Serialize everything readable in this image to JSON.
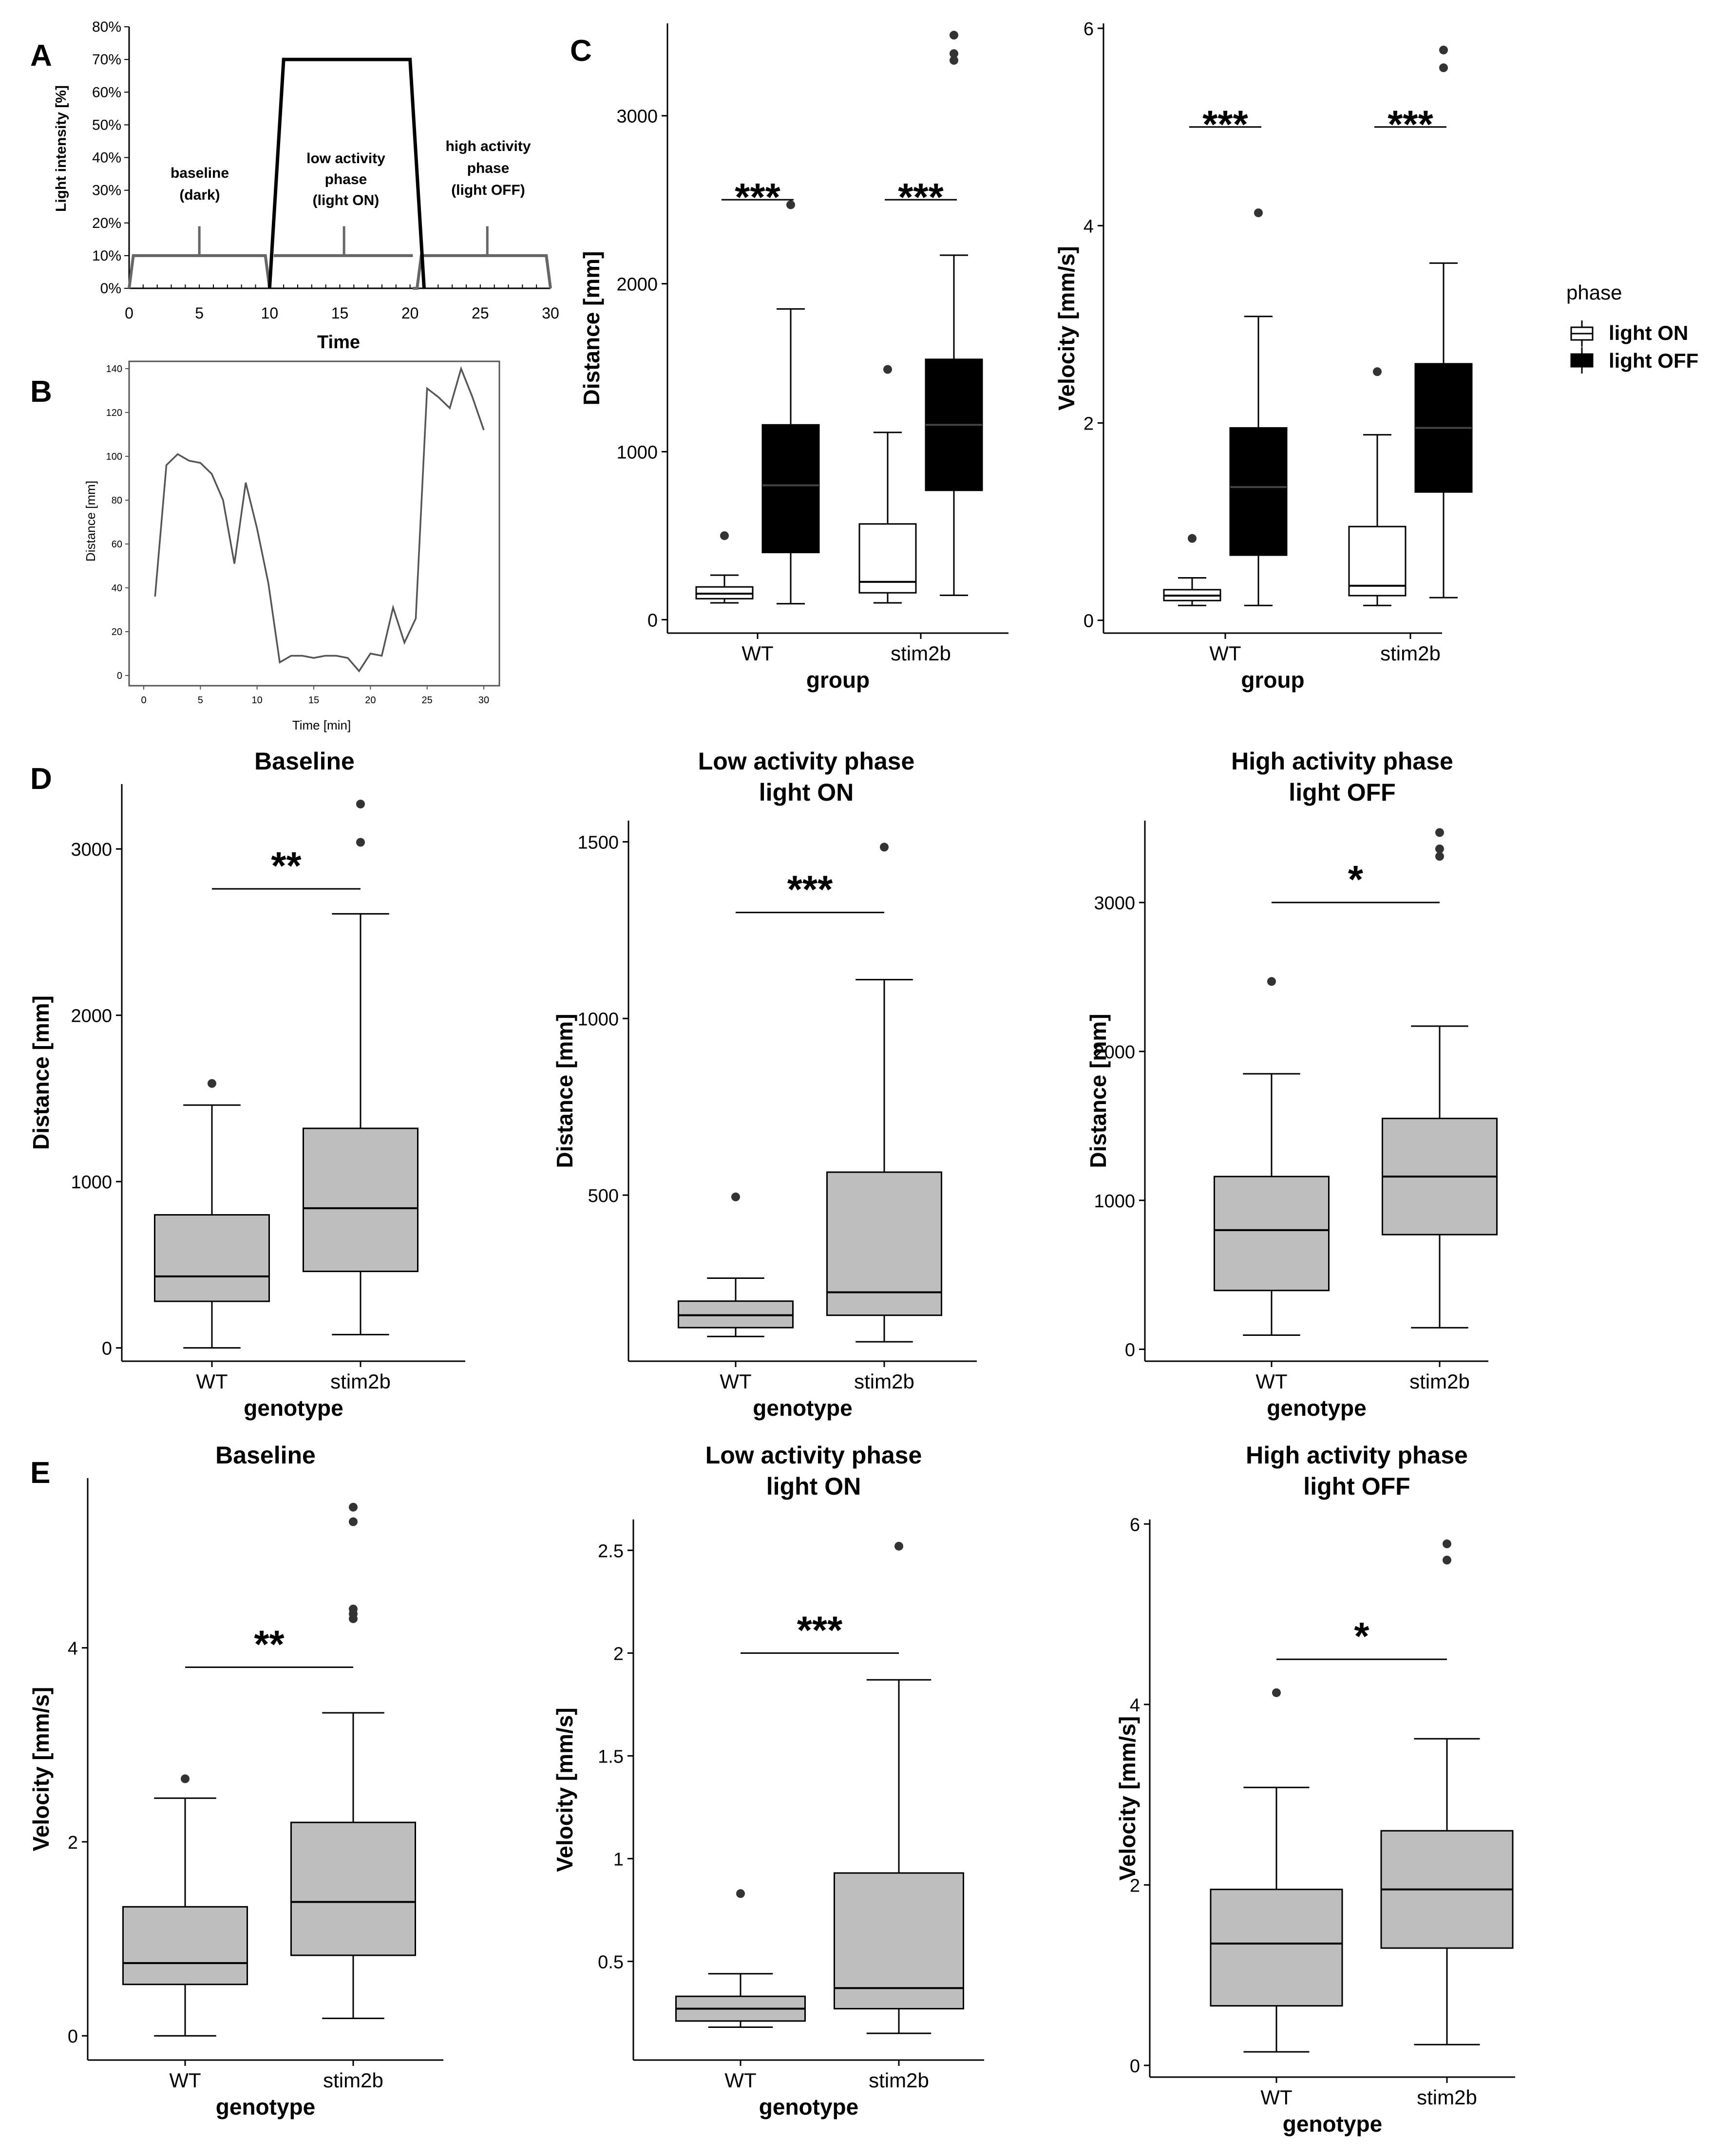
{
  "panel_labels": {
    "A": "A",
    "B": "B",
    "C": "C",
    "D": "D",
    "E": "E"
  },
  "shared": {
    "group_label": "group",
    "genotype_label": "genotype",
    "wt": "WT",
    "stim2b": "stim2b",
    "distance_label": "Distance [mm]",
    "velocity_label": "Velocity [mm/s]"
  },
  "legend": {
    "title": "phase",
    "items": [
      {
        "label": "light ON",
        "fill": "#ffffff"
      },
      {
        "label": "light OFF",
        "fill": "#000000"
      }
    ]
  },
  "colors": {
    "box_grey": "#bebebe",
    "black": "#000000",
    "white": "#ffffff",
    "trace": "#555555"
  },
  "chart_data": [
    {
      "id": "A",
      "type": "line",
      "xlabel": "Time",
      "ylabel": "Light intensity [%]",
      "xlim": [
        0,
        30
      ],
      "ylim": [
        0,
        80
      ],
      "x_ticks": [
        "0",
        "5",
        "10",
        "15",
        "20",
        "25",
        "30"
      ],
      "y_ticks": [
        "0%",
        "10%",
        "20%",
        "30%",
        "40%",
        "50%",
        "60%",
        "70%",
        "80%"
      ],
      "annotations": [
        {
          "lines": [
            "baseline",
            "(dark)"
          ]
        },
        {
          "lines": [
            "low activity",
            "phase",
            "(light ON)"
          ]
        },
        {
          "lines": [
            "high activity",
            "phase",
            "(light OFF)"
          ]
        }
      ],
      "series": [
        {
          "name": "dark trace",
          "x": [
            0,
            0.3,
            9.7,
            10,
            10.3,
            20.2,
            20.5,
            20.8,
            29.7,
            30
          ],
          "y": [
            0,
            10,
            10,
            0,
            0,
            0,
            0,
            10,
            10,
            0
          ]
        },
        {
          "name": "light ON",
          "x": [
            10,
            11,
            20,
            21
          ],
          "y": [
            0,
            70,
            70,
            0
          ]
        }
      ]
    },
    {
      "id": "B",
      "type": "line",
      "xlabel": "Time [min]",
      "ylabel": "Distance [mm]",
      "xlim": [
        0,
        30
      ],
      "ylim": [
        0,
        140
      ],
      "x_ticks": [
        "0",
        "5",
        "10",
        "15",
        "20",
        "25",
        "30"
      ],
      "y_ticks": [
        "0",
        "20",
        "40",
        "60",
        "80",
        "100",
        "120",
        "140"
      ],
      "x": [
        1,
        2,
        3,
        4,
        5,
        6,
        7,
        8,
        9,
        10,
        11,
        12,
        13,
        14,
        15,
        16,
        17,
        18,
        19,
        20,
        21,
        22,
        23,
        24,
        25,
        26,
        27,
        28,
        29,
        30
      ],
      "y": [
        36,
        96,
        101,
        98,
        97,
        92,
        80,
        51,
        88,
        67,
        42,
        6,
        9,
        9,
        8,
        9,
        9,
        8,
        2,
        10,
        9,
        31,
        15,
        26,
        131,
        127,
        122,
        140,
        127,
        112
      ]
    },
    {
      "id": "C-distance",
      "type": "boxplot",
      "xlabel": "group",
      "ylabel": "Distance [mm]",
      "ylim": [
        -80,
        3550
      ],
      "y_ticks": [
        0,
        1000,
        2000,
        3000
      ],
      "categories": [
        "WT",
        "stim2b"
      ],
      "series": [
        {
          "name": "light ON",
          "fill": "#ffffff",
          "boxes": [
            {
              "min": 100,
              "q1": 125,
              "median": 155,
              "q3": 195,
              "max": 265,
              "outliers": [
                500
              ]
            },
            {
              "min": 100,
              "q1": 160,
              "median": 225,
              "q3": 570,
              "max": 1115,
              "outliers": [
                1490
              ]
            }
          ]
        },
        {
          "name": "light OFF",
          "fill": "#000000",
          "boxes": [
            {
              "min": 95,
              "q1": 400,
              "median": 800,
              "q3": 1160,
              "max": 1850,
              "outliers": [
                2470
              ]
            },
            {
              "min": 145,
              "q1": 770,
              "median": 1160,
              "q3": 1550,
              "max": 2170,
              "outliers": [
                3330,
                3370,
                3480
              ]
            }
          ]
        }
      ],
      "significance": [
        {
          "category": "WT",
          "label": "***",
          "y": 2500
        },
        {
          "category": "stim2b",
          "label": "***",
          "y": 2500
        }
      ]
    },
    {
      "id": "C-velocity",
      "type": "boxplot",
      "xlabel": "group",
      "ylabel": "Velocity [mm/s]",
      "ylim": [
        -0.13,
        6.05
      ],
      "y_ticks": [
        0,
        2,
        4,
        6
      ],
      "categories": [
        "WT",
        "stim2b"
      ],
      "series": [
        {
          "name": "light ON",
          "fill": "#ffffff",
          "boxes": [
            {
              "min": 0.15,
              "q1": 0.2,
              "median": 0.25,
              "q3": 0.31,
              "max": 0.43,
              "outliers": [
                0.83
              ]
            },
            {
              "min": 0.15,
              "q1": 0.25,
              "median": 0.35,
              "q3": 0.95,
              "max": 1.88,
              "outliers": [
                2.52
              ]
            }
          ]
        },
        {
          "name": "light OFF",
          "fill": "#000000",
          "boxes": [
            {
              "min": 0.15,
              "q1": 0.66,
              "median": 1.35,
              "q3": 1.95,
              "max": 3.08,
              "outliers": [
                4.13
              ]
            },
            {
              "min": 0.23,
              "q1": 1.3,
              "median": 1.95,
              "q3": 2.6,
              "max": 3.62,
              "outliers": [
                5.6,
                5.78
              ]
            }
          ]
        }
      ],
      "significance": [
        {
          "category": "WT",
          "label": "***",
          "y": 5.0
        },
        {
          "category": "stim2b",
          "label": "***",
          "y": 5.0
        }
      ]
    },
    {
      "id": "D-baseline",
      "type": "boxplot",
      "title": [
        "Baseline"
      ],
      "xlabel": "genotype",
      "ylabel": "Distance [mm]",
      "ylim": [
        -80,
        3390
      ],
      "y_ticks": [
        0,
        1000,
        2000,
        3000
      ],
      "categories": [
        "WT",
        "stim2b"
      ],
      "boxes": [
        {
          "min": 0,
          "q1": 280,
          "median": 430,
          "q3": 800,
          "max": 1460,
          "outliers": [
            1590
          ]
        },
        {
          "min": 80,
          "q1": 460,
          "median": 840,
          "q3": 1320,
          "max": 2610,
          "outliers": [
            3040,
            3270
          ]
        }
      ],
      "significance": {
        "label": "**",
        "y": 2760
      }
    },
    {
      "id": "D-low",
      "type": "boxplot",
      "title": [
        "Low activity phase",
        "light ON"
      ],
      "xlabel": "genotype",
      "ylabel": "Distance [mm]",
      "ylim": [
        30,
        1560
      ],
      "y_ticks": [
        500,
        1000,
        1500
      ],
      "categories": [
        "WT",
        "stim2b"
      ],
      "boxes": [
        {
          "min": 100,
          "q1": 125,
          "median": 160,
          "q3": 200,
          "max": 265,
          "outliers": [
            495
          ]
        },
        {
          "min": 85,
          "q1": 160,
          "median": 225,
          "q3": 565,
          "max": 1110,
          "outliers": [
            1485
          ]
        }
      ],
      "significance": {
        "label": "***",
        "y": 1300
      }
    },
    {
      "id": "D-high",
      "type": "boxplot",
      "title": [
        "High activity phase",
        "light OFF"
      ],
      "xlabel": "genotype",
      "ylabel": "Distance [mm]",
      "ylim": [
        -80,
        3550
      ],
      "y_ticks": [
        0,
        1000,
        2000,
        3000
      ],
      "categories": [
        "WT",
        "stim2b"
      ],
      "boxes": [
        {
          "min": 95,
          "q1": 395,
          "median": 800,
          "q3": 1160,
          "max": 1850,
          "outliers": [
            2470
          ]
        },
        {
          "min": 145,
          "q1": 770,
          "median": 1160,
          "q3": 1550,
          "max": 2170,
          "outliers": [
            3310,
            3360,
            3470
          ]
        }
      ],
      "significance": {
        "label": "*",
        "y": 3000
      }
    },
    {
      "id": "E-baseline",
      "type": "boxplot",
      "title": [
        "Baseline"
      ],
      "xlabel": "genotype",
      "ylabel": "Velocity [mm/s]",
      "ylim": [
        -0.25,
        5.75
      ],
      "y_ticks": [
        0,
        2,
        4
      ],
      "categories": [
        "WT",
        "stim2b"
      ],
      "boxes": [
        {
          "min": 0,
          "q1": 0.53,
          "median": 0.75,
          "q3": 1.33,
          "max": 2.45,
          "outliers": [
            2.65
          ]
        },
        {
          "min": 0.18,
          "q1": 0.83,
          "median": 1.38,
          "q3": 2.2,
          "max": 3.33,
          "outliers": [
            4.3,
            4.35,
            4.4,
            5.3,
            5.45
          ]
        }
      ],
      "significance": {
        "label": "**",
        "y": 3.8
      }
    },
    {
      "id": "E-low",
      "type": "boxplot",
      "title": [
        "Low activity phase",
        "light ON"
      ],
      "xlabel": "genotype",
      "ylabel": "Velocity [mm/s]",
      "ylim": [
        0.02,
        2.65
      ],
      "y_ticks": [
        0.5,
        1.0,
        1.5,
        2.0,
        2.5
      ],
      "categories": [
        "WT",
        "stim2b"
      ],
      "boxes": [
        {
          "min": 0.18,
          "q1": 0.21,
          "median": 0.27,
          "q3": 0.33,
          "max": 0.44,
          "outliers": [
            0.83
          ]
        },
        {
          "min": 0.15,
          "q1": 0.27,
          "median": 0.37,
          "q3": 0.93,
          "max": 1.87,
          "outliers": [
            2.52
          ]
        }
      ],
      "significance": {
        "label": "***",
        "y": 2.0
      }
    },
    {
      "id": "E-high",
      "type": "boxplot",
      "title": [
        "High activity phase",
        "light OFF"
      ],
      "xlabel": "genotype",
      "ylabel": "Velocity [mm/s]",
      "ylim": [
        -0.13,
        6.05
      ],
      "y_ticks": [
        0,
        2,
        4,
        6
      ],
      "categories": [
        "WT",
        "stim2b"
      ],
      "boxes": [
        {
          "min": 0.15,
          "q1": 0.66,
          "median": 1.35,
          "q3": 1.95,
          "max": 3.08,
          "outliers": [
            4.13
          ]
        },
        {
          "min": 0.23,
          "q1": 1.3,
          "median": 1.95,
          "q3": 2.6,
          "max": 3.62,
          "outliers": [
            5.6,
            5.78
          ]
        }
      ],
      "significance": {
        "label": "*",
        "y": 4.5
      }
    }
  ]
}
